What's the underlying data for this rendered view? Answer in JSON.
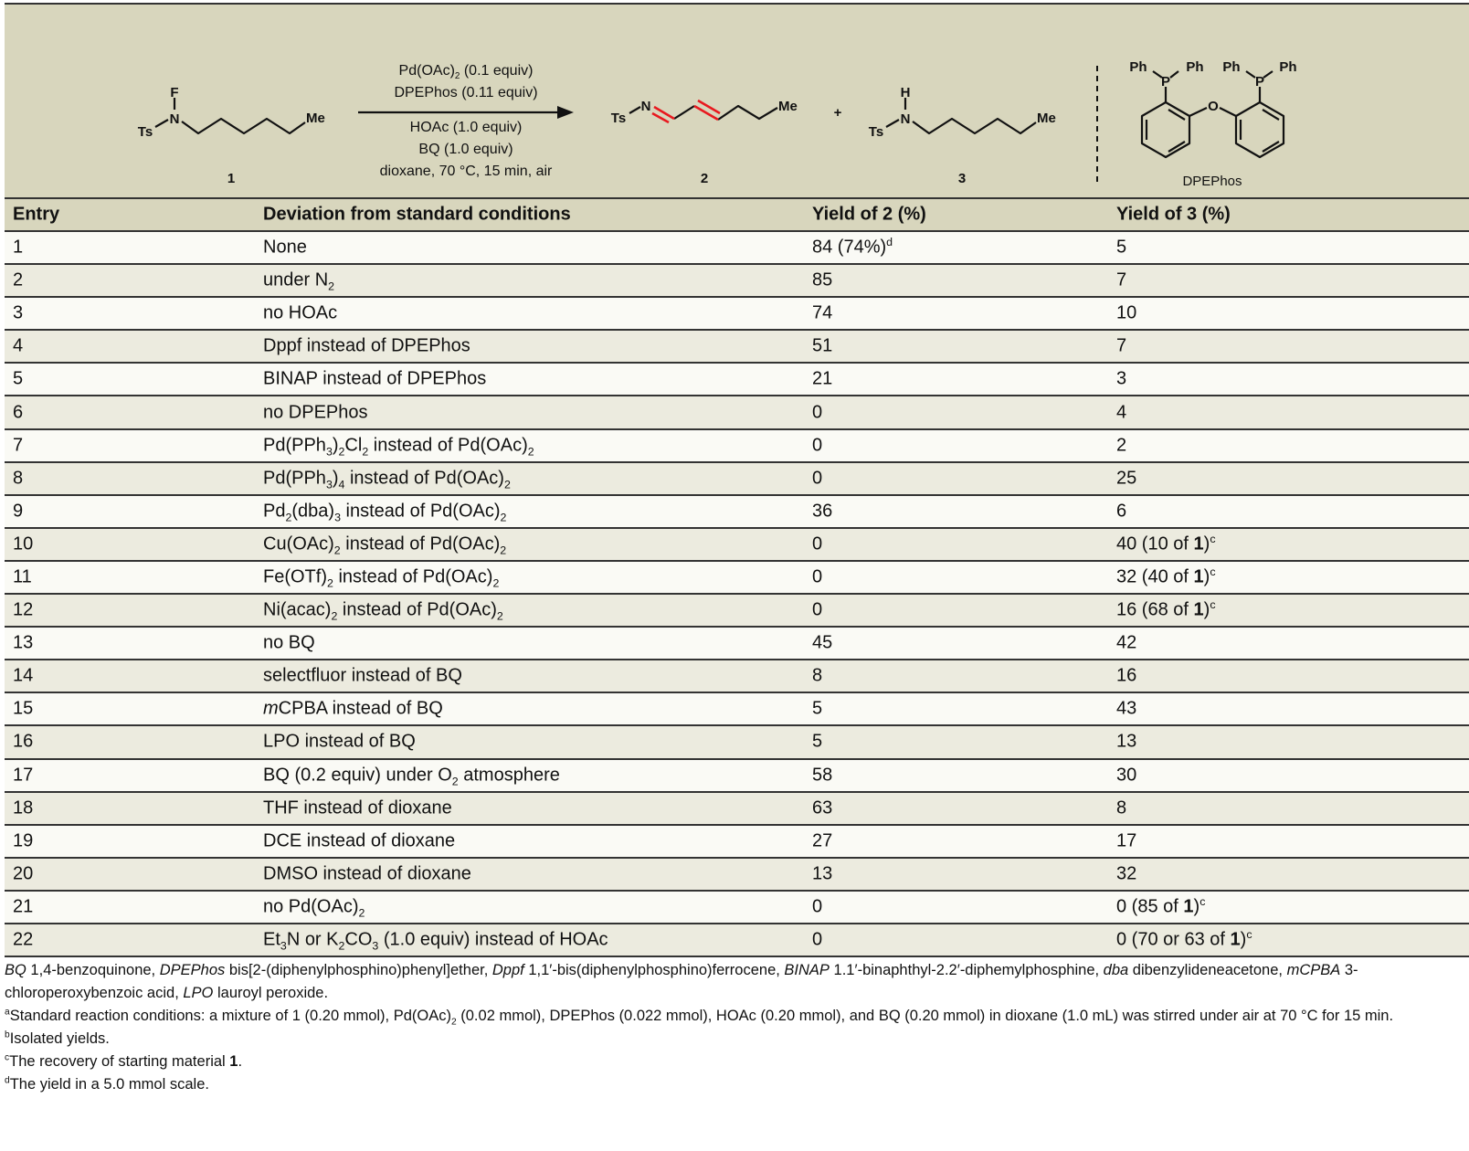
{
  "scheme": {
    "compound1": {
      "label": "1",
      "atoms": [
        "F",
        "N",
        "Ts",
        "Me"
      ]
    },
    "conditions": [
      "Pd(OAc)<sub>2</sub> (0.1 equiv)",
      "DPEPhos (0.11 equiv)",
      "HOAc (1.0 equiv)",
      "BQ (1.0 equiv)",
      "dioxane, 70 °C, 15 min, air"
    ],
    "compound2": {
      "label": "2",
      "atoms": [
        "N",
        "Ts",
        "Me"
      ],
      "highlight_color": "#e8191f"
    },
    "plus": "+",
    "compound3": {
      "label": "3",
      "atoms": [
        "H",
        "N",
        "Ts",
        "Me"
      ]
    },
    "ligand": {
      "label": "DPEPhos",
      "atoms": [
        "Ph",
        "P",
        "Ph",
        "Ph",
        "P",
        "Ph",
        "O"
      ]
    }
  },
  "colors": {
    "header_bg": "#d8d6bd",
    "row_odd": "#fafaf5",
    "row_even": "#ecebdf",
    "rule": "#333333"
  },
  "table": {
    "headers": [
      "Entry",
      "Deviation from standard conditions",
      "Yield of 2 (%)",
      "Yield of 3 (%)"
    ],
    "rows": [
      [
        "1",
        "None",
        "84 (74%)<sup>d</sup>",
        "5"
      ],
      [
        "2",
        "under N<sub>2</sub>",
        "85",
        "7"
      ],
      [
        "3",
        "no HOAc",
        "74",
        "10"
      ],
      [
        "4",
        "Dppf instead of DPEPhos",
        "51",
        "7"
      ],
      [
        "5",
        "BINAP instead of DPEPhos",
        "21",
        "3"
      ],
      [
        "6",
        "no DPEPhos",
        "0",
        "4"
      ],
      [
        "7",
        "Pd(PPh<sub>3</sub>)<sub>2</sub>Cl<sub>2</sub> instead of Pd(OAc)<sub>2</sub>",
        "0",
        "2"
      ],
      [
        "8",
        "Pd(PPh<sub>3</sub>)<sub>4</sub> instead of Pd(OAc)<sub>2</sub>",
        "0",
        "25"
      ],
      [
        "9",
        "Pd<sub>2</sub>(dba)<sub>3</sub> instead of Pd(OAc)<sub>2</sub>",
        "36",
        "6"
      ],
      [
        "10",
        "Cu(OAc)<sub>2</sub> instead of Pd(OAc)<sub>2</sub>",
        "0",
        "40 (10 of <b>1</b>)<sup>c</sup>"
      ],
      [
        "11",
        "Fe(OTf)<sub>2</sub> instead of Pd(OAc)<sub>2</sub>",
        "0",
        "32 (40 of <b>1</b>)<sup>c</sup>"
      ],
      [
        "12",
        "Ni(acac)<sub>2</sub> instead of Pd(OAc)<sub>2</sub>",
        "0",
        "16 (68 of <b>1</b>)<sup>c</sup>"
      ],
      [
        "13",
        "no BQ",
        "45",
        "42"
      ],
      [
        "14",
        "selectfluor instead of BQ",
        "8",
        "16"
      ],
      [
        "15",
        "<i>m</i>CPBA instead of BQ",
        "5",
        "43"
      ],
      [
        "16",
        "LPO instead of BQ",
        "5",
        "13"
      ],
      [
        "17",
        "BQ (0.2 equiv) under O<sub>2</sub> atmosphere",
        "58",
        "30"
      ],
      [
        "18",
        "THF instead of dioxane",
        "63",
        "8"
      ],
      [
        "19",
        "DCE instead of dioxane",
        "27",
        "17"
      ],
      [
        "20",
        "DMSO instead of dioxane",
        "13",
        "32"
      ],
      [
        "21",
        "no Pd(OAc)<sub>2</sub>",
        "0",
        "0 (85 of <b>1</b>)<sup>c</sup>"
      ],
      [
        "22",
        "Et<sub>3</sub>N or K<sub>2</sub>CO<sub>3</sub> (1.0 equiv) instead of HOAc",
        "0",
        "0 (70 or 63 of <b>1</b>)<sup>c</sup>"
      ]
    ]
  },
  "footnotes": [
    "<i>BQ</i> 1,4-benzoquinone, <i>DPEPhos</i> bis[2-(diphenylphosphino)phenyl]ether, <i>Dppf</i> 1,1′-bis(diphenylphosphino)ferrocene, <i>BINAP</i> 1.1′-binaphthyl-2.2′-diphemylphosphine, <i>dba</i> dibenzylideneacetone, <i>mCPBA</i> 3-chloroperoxybenzoic acid, <i>LPO</i> lauroyl peroxide.",
    "<sup>a</sup>Standard reaction conditions: a mixture of 1 (0.20 mmol), Pd(OAc)<sub>2</sub> (0.02 mmol), DPEPhos (0.022 mmol), HOAc (0.20 mmol), and BQ (0.20 mmol) in dioxane (1.0 mL) was stirred under air at 70 °C for 15 min.",
    "<sup>b</sup>Isolated yields.",
    "<sup>c</sup>The recovery of starting material <b>1</b>.",
    "<sup>d</sup>The yield in a 5.0 mmol scale."
  ]
}
